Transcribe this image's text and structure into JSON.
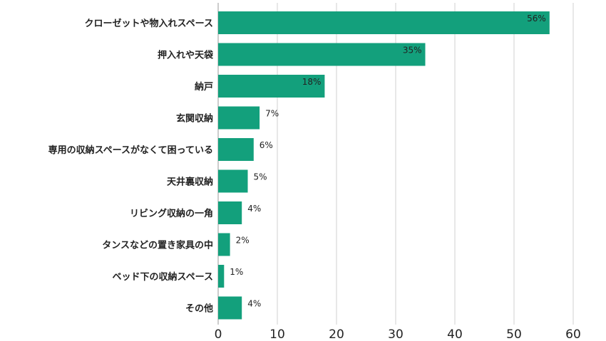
{
  "chart_data": {
    "type": "bar",
    "orientation": "horizontal",
    "categories": [
      "クローゼットや物入れスペース",
      "押入れや天袋",
      "納戸",
      "玄関収納",
      "専用の収納スペースがなくて困っている",
      "天井裏収納",
      "リビング収納の一角",
      "タンスなどの置き家具の中",
      "ベッド下の収納スペース",
      "その他"
    ],
    "values": [
      56,
      35,
      18,
      7,
      6,
      5,
      4,
      2,
      1,
      4
    ],
    "data_labels": [
      "56%",
      "35%",
      "18%",
      "7%",
      "6%",
      "5%",
      "4%",
      "2%",
      "1%",
      "4%"
    ],
    "x_ticks": [
      "0",
      "10",
      "20",
      "30",
      "40",
      "50",
      "60"
    ],
    "xlim": [
      0,
      60
    ],
    "bar_color": "#13a07c",
    "grid": "vertical",
    "legend": "none"
  }
}
